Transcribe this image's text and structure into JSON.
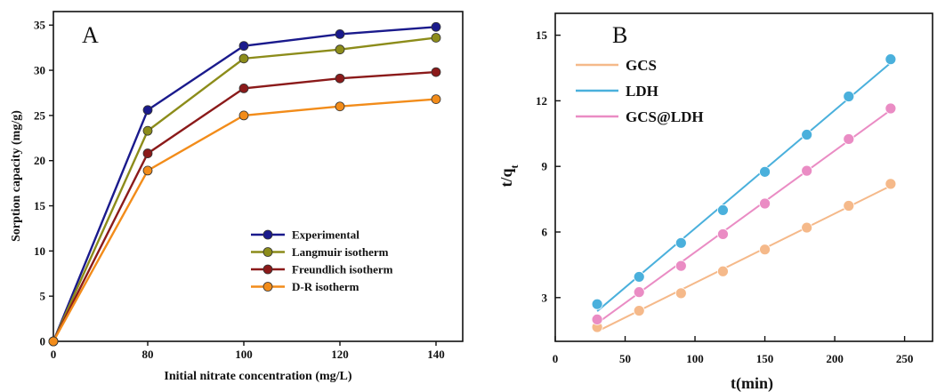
{
  "chart_data": [
    {
      "type": "line",
      "panel_label": "A",
      "xlabel": "Initial nitrate concentration (mg/L)",
      "ylabel": "Sorption capacity (mg/g)",
      "x_ticks": [
        0,
        80,
        100,
        120,
        140
      ],
      "y_ticks": [
        0,
        5,
        10,
        15,
        20,
        25,
        30,
        35
      ],
      "ylim": [
        0,
        36.5
      ],
      "legend_position": "lower-right",
      "x": [
        0,
        80,
        100,
        120,
        140
      ],
      "series": [
        {
          "name": "Experimental",
          "color": "#1a1a8c",
          "values": [
            0,
            25.6,
            32.7,
            34.0,
            34.8
          ]
        },
        {
          "name": "Langmuir isotherm",
          "color": "#8c8c1a",
          "values": [
            0,
            23.3,
            31.3,
            32.3,
            33.6
          ]
        },
        {
          "name": "Freundlich isotherm",
          "color": "#8b1a1a",
          "values": [
            0,
            20.8,
            28.0,
            29.1,
            29.8
          ]
        },
        {
          "name": "D-R isotherm",
          "color": "#f28c1a",
          "values": [
            0,
            18.9,
            25.0,
            26.0,
            26.8
          ]
        }
      ]
    },
    {
      "type": "scatter",
      "panel_label": "B",
      "xlabel": "t(min)",
      "ylabel_main": "t/q",
      "ylabel_sub": "t",
      "x_ticks": [
        0,
        50,
        100,
        150,
        200,
        250
      ],
      "y_ticks": [
        3,
        6,
        9,
        12,
        15
      ],
      "xlim": [
        0,
        270
      ],
      "ylim": [
        1,
        16
      ],
      "legend_position": "top-left",
      "x": [
        30,
        60,
        90,
        120,
        150,
        180,
        210,
        240
      ],
      "series": [
        {
          "name": "GCS",
          "color": "#f5b98a",
          "values": [
            1.65,
            2.4,
            3.2,
            4.2,
            5.2,
            6.2,
            7.2,
            8.2
          ]
        },
        {
          "name": "LDH",
          "color": "#4ab0dc",
          "values": [
            2.7,
            3.95,
            5.5,
            7.0,
            8.75,
            10.45,
            12.2,
            13.9
          ]
        },
        {
          "name": "GCS@LDH",
          "color": "#ea8cc4",
          "values": [
            2.0,
            3.25,
            4.45,
            5.9,
            7.3,
            8.8,
            10.25,
            11.65
          ]
        }
      ]
    }
  ]
}
